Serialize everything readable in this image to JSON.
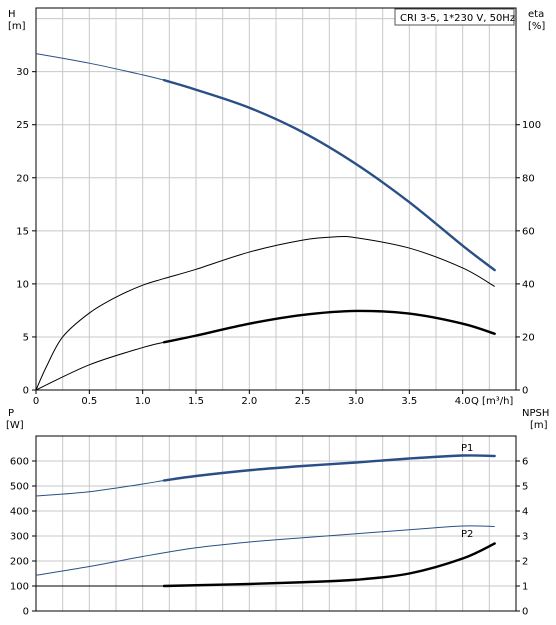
{
  "chart_data": [
    {
      "type": "line",
      "legend_text": "CRI 3-5, 1*230 V, 50Hz",
      "legend_position": "top-right",
      "xlabel": "Q [m³/h]",
      "xlim": [
        0,
        4.5
      ],
      "xticks": [
        "0",
        "0.5",
        "1.0",
        "1.5",
        "2.0",
        "2.5",
        "3.0",
        "3.5",
        "4.0"
      ],
      "left_axis": {
        "label_line1": "H",
        "label_line2": "[m]",
        "ylim": [
          0,
          36
        ],
        "ticks": [
          "0",
          "5",
          "10",
          "15",
          "20",
          "25",
          "30"
        ]
      },
      "right_axis": {
        "label_line1": "eta",
        "label_line2": "[%]",
        "ylim": [
          0,
          144
        ],
        "ticks": [
          "0",
          "20",
          "40",
          "60",
          "80",
          "100"
        ]
      },
      "grid": true,
      "series": [
        {
          "key": "H",
          "axis": "left",
          "color": "#2a4f86",
          "x": [
            0,
            0.5,
            1.0,
            1.2,
            1.5,
            2.0,
            2.5,
            3.0,
            3.5,
            4.0,
            4.3
          ],
          "y": [
            31.7,
            30.8,
            29.7,
            29.2,
            28.3,
            26.6,
            24.3,
            21.3,
            17.7,
            13.6,
            11.3
          ],
          "thick_from": 1.2,
          "thick_to": 4.3
        },
        {
          "key": "eta",
          "axis": "right",
          "color": "#000000",
          "x": [
            0,
            0.1,
            0.25,
            0.5,
            0.75,
            1.0,
            1.2,
            1.5,
            2.0,
            2.5,
            2.8,
            3.0,
            3.5,
            4.0,
            4.3
          ],
          "y": [
            0,
            9,
            20,
            29,
            35,
            39.5,
            42,
            45.5,
            52,
            56.5,
            57.7,
            57.4,
            53.5,
            46,
            39
          ],
          "thick_from": null,
          "thick_to": null
        },
        {
          "key": "eta-partial",
          "axis": "right",
          "color": "#000000",
          "x": [
            0,
            0.5,
            1.0,
            1.2,
            1.5,
            2.0,
            2.5,
            3.0,
            3.5,
            4.0,
            4.3
          ],
          "y": [
            0,
            9.5,
            16,
            18,
            20.5,
            25,
            28.3,
            29.8,
            28.8,
            25,
            21.2
          ],
          "thick_from": 1.2,
          "thick_to": 4.3
        }
      ]
    },
    {
      "type": "line",
      "xlim": [
        0,
        4.5
      ],
      "left_axis": {
        "label_line1": "P",
        "label_line2": "[W]",
        "ylim": [
          0,
          700
        ],
        "ticks": [
          "0",
          "100",
          "200",
          "300",
          "400",
          "500",
          "600"
        ]
      },
      "right_axis": {
        "label_line1": "NPSH",
        "label_line2": "[m]",
        "ylim": [
          0,
          7
        ],
        "ticks": [
          "0",
          "1",
          "2",
          "3",
          "4",
          "5",
          "6"
        ]
      },
      "grid": true,
      "series": [
        {
          "key": "P1",
          "name": "P1",
          "axis": "left",
          "color": "#2a4f86",
          "x": [
            0,
            0.5,
            1.0,
            1.2,
            1.5,
            2.0,
            2.5,
            3.0,
            3.5,
            4.0,
            4.3
          ],
          "y": [
            460,
            477,
            508,
            522,
            540,
            563,
            580,
            594,
            610,
            622,
            620
          ],
          "thick_from": 1.2,
          "thick_to": 4.3
        },
        {
          "key": "P2",
          "name": "P2",
          "axis": "left",
          "color": "#2a4f86",
          "x": [
            0,
            0.5,
            1.0,
            1.5,
            2.0,
            2.5,
            3.0,
            3.5,
            4.0,
            4.3
          ],
          "y": [
            143,
            178,
            218,
            253,
            276,
            293,
            309,
            325,
            340,
            338
          ],
          "thick_from": null,
          "thick_to": null
        },
        {
          "key": "NPSH",
          "axis": "right",
          "color": "#000000",
          "x": [
            0,
            0.5,
            1.0,
            1.2,
            1.5,
            2.0,
            2.5,
            3.0,
            3.5,
            4.0,
            4.3
          ],
          "y": [
            1.0,
            1.0,
            1.0,
            1.0,
            1.03,
            1.08,
            1.15,
            1.25,
            1.5,
            2.1,
            2.7
          ],
          "thick_from": 1.2,
          "thick_to": 4.3
        }
      ]
    }
  ]
}
